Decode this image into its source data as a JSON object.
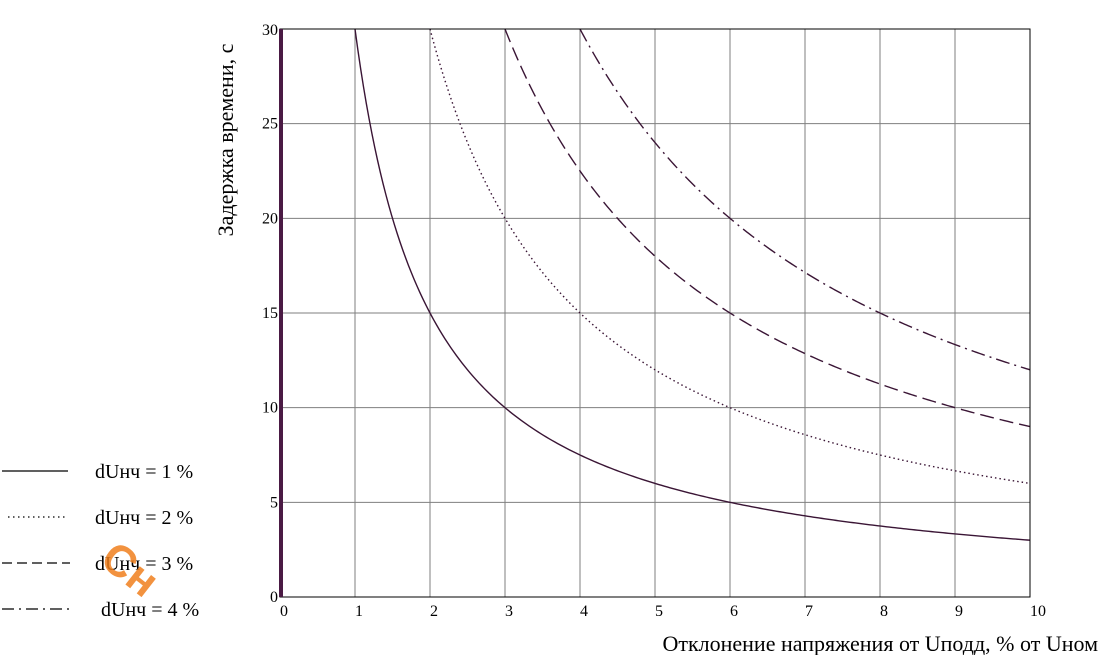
{
  "chart_data": {
    "type": "line",
    "xlabel": "Отклонение напряжения от Uподд, % от Uном",
    "ylabel": "Задержка времени, с",
    "xlim": [
      0,
      10
    ],
    "ylim": [
      0,
      30
    ],
    "x_ticks": [
      0,
      1,
      2,
      3,
      4,
      5,
      6,
      7,
      8,
      9,
      10
    ],
    "y_ticks": [
      0,
      5,
      10,
      15,
      20,
      25,
      30
    ],
    "grid": true,
    "legend_position": "left",
    "series": [
      {
        "name": "dUнч = 1 %",
        "k": 1,
        "style": "solid",
        "x": [
          1,
          1.5,
          2,
          3,
          4,
          5,
          6,
          7,
          8,
          9,
          10
        ],
        "y": [
          30,
          20,
          15,
          10,
          7.5,
          6,
          5,
          4.29,
          3.75,
          3.33,
          3
        ]
      },
      {
        "name": "dUнч = 2 %",
        "k": 2,
        "style": "dotted",
        "x": [
          2,
          3,
          4,
          5,
          6,
          7,
          8,
          9,
          10
        ],
        "y": [
          30,
          20,
          15,
          12,
          10,
          8.57,
          7.5,
          6.67,
          6
        ]
      },
      {
        "name": "dUнч = 3 %",
        "k": 3,
        "style": "dashed",
        "x": [
          3,
          4,
          5,
          6,
          7,
          8,
          9,
          10
        ],
        "y": [
          30,
          22.5,
          18,
          15,
          12.86,
          11.25,
          10,
          9
        ]
      },
      {
        "name": "dUнч = 4 %",
        "k": 4,
        "style": "dashdot",
        "x": [
          4,
          5,
          6,
          7,
          8,
          9,
          10
        ],
        "y": [
          30,
          24,
          20,
          17.14,
          15,
          13.33,
          12
        ]
      }
    ],
    "colors": {
      "curve": "#3a1535",
      "grid": "#7f7f7f",
      "y_axis_bar": "#4a1a44",
      "frame": "#000000"
    }
  }
}
